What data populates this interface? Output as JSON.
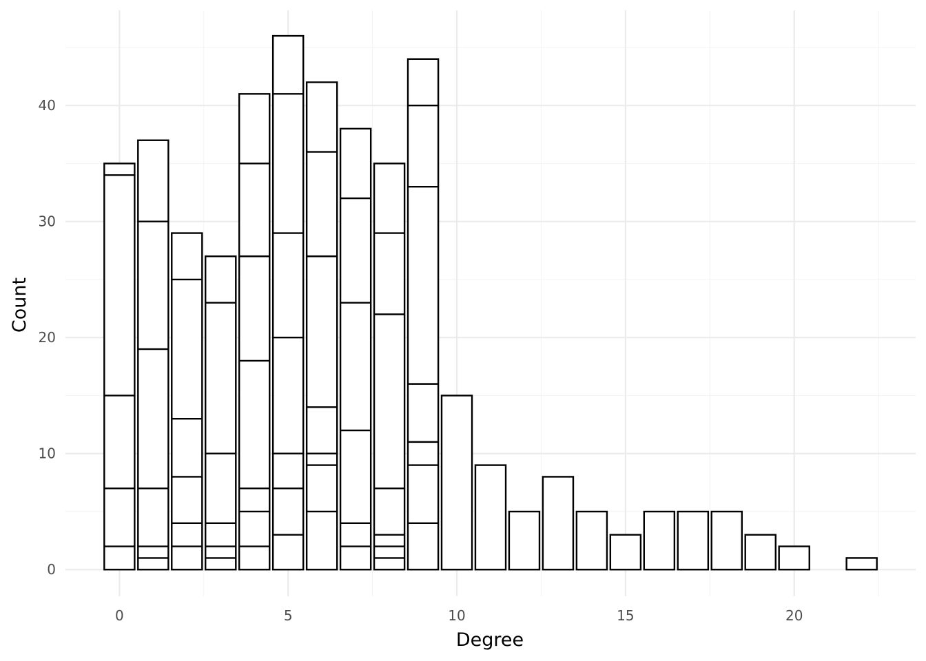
{
  "chart_data": {
    "type": "bar",
    "stacked": true,
    "xlabel": "Degree",
    "ylabel": "Count",
    "xlim": [
      -1.6,
      23.6
    ],
    "ylim": [
      -2.3,
      48.2
    ],
    "x_ticks": [
      0,
      5,
      10,
      15,
      20
    ],
    "y_ticks": [
      0,
      10,
      20,
      30,
      40
    ],
    "grid": true,
    "legend": "none",
    "colors": {
      "bar_fill": "#ffffff",
      "bar_outline": "#000000",
      "grid_major": "#ebebeb",
      "grid_minor": "#f4f4f4",
      "tick_text": "#4d4d4d",
      "title_text": "#000000"
    },
    "bars": [
      {
        "x": 0,
        "total": 35,
        "boundaries": [
          2,
          7,
          15,
          34
        ]
      },
      {
        "x": 1,
        "total": 37,
        "boundaries": [
          1,
          2,
          7,
          19,
          30
        ]
      },
      {
        "x": 2,
        "total": 29,
        "boundaries": [
          2,
          4,
          8,
          13,
          25
        ]
      },
      {
        "x": 3,
        "total": 27,
        "boundaries": [
          1,
          2,
          4,
          10,
          23
        ]
      },
      {
        "x": 4,
        "total": 41,
        "boundaries": [
          2,
          5,
          7,
          18,
          27,
          35
        ]
      },
      {
        "x": 5,
        "total": 46,
        "boundaries": [
          3,
          7,
          10,
          20,
          29,
          41
        ]
      },
      {
        "x": 6,
        "total": 42,
        "boundaries": [
          5,
          9,
          10,
          14,
          27,
          36
        ]
      },
      {
        "x": 7,
        "total": 38,
        "boundaries": [
          2,
          4,
          12,
          23,
          32
        ]
      },
      {
        "x": 8,
        "total": 35,
        "boundaries": [
          1,
          2,
          3,
          7,
          22,
          29
        ]
      },
      {
        "x": 9,
        "total": 44,
        "boundaries": [
          4,
          9,
          11,
          16,
          33,
          40
        ]
      },
      {
        "x": 10,
        "total": 15,
        "boundaries": []
      },
      {
        "x": 11,
        "total": 9,
        "boundaries": []
      },
      {
        "x": 12,
        "total": 5,
        "boundaries": []
      },
      {
        "x": 13,
        "total": 8,
        "boundaries": []
      },
      {
        "x": 14,
        "total": 5,
        "boundaries": []
      },
      {
        "x": 15,
        "total": 3,
        "boundaries": []
      },
      {
        "x": 16,
        "total": 5,
        "boundaries": []
      },
      {
        "x": 17,
        "total": 5,
        "boundaries": []
      },
      {
        "x": 18,
        "total": 5,
        "boundaries": []
      },
      {
        "x": 19,
        "total": 3,
        "boundaries": []
      },
      {
        "x": 20,
        "total": 2,
        "boundaries": []
      },
      {
        "x": 22,
        "total": 1,
        "boundaries": []
      }
    ]
  }
}
